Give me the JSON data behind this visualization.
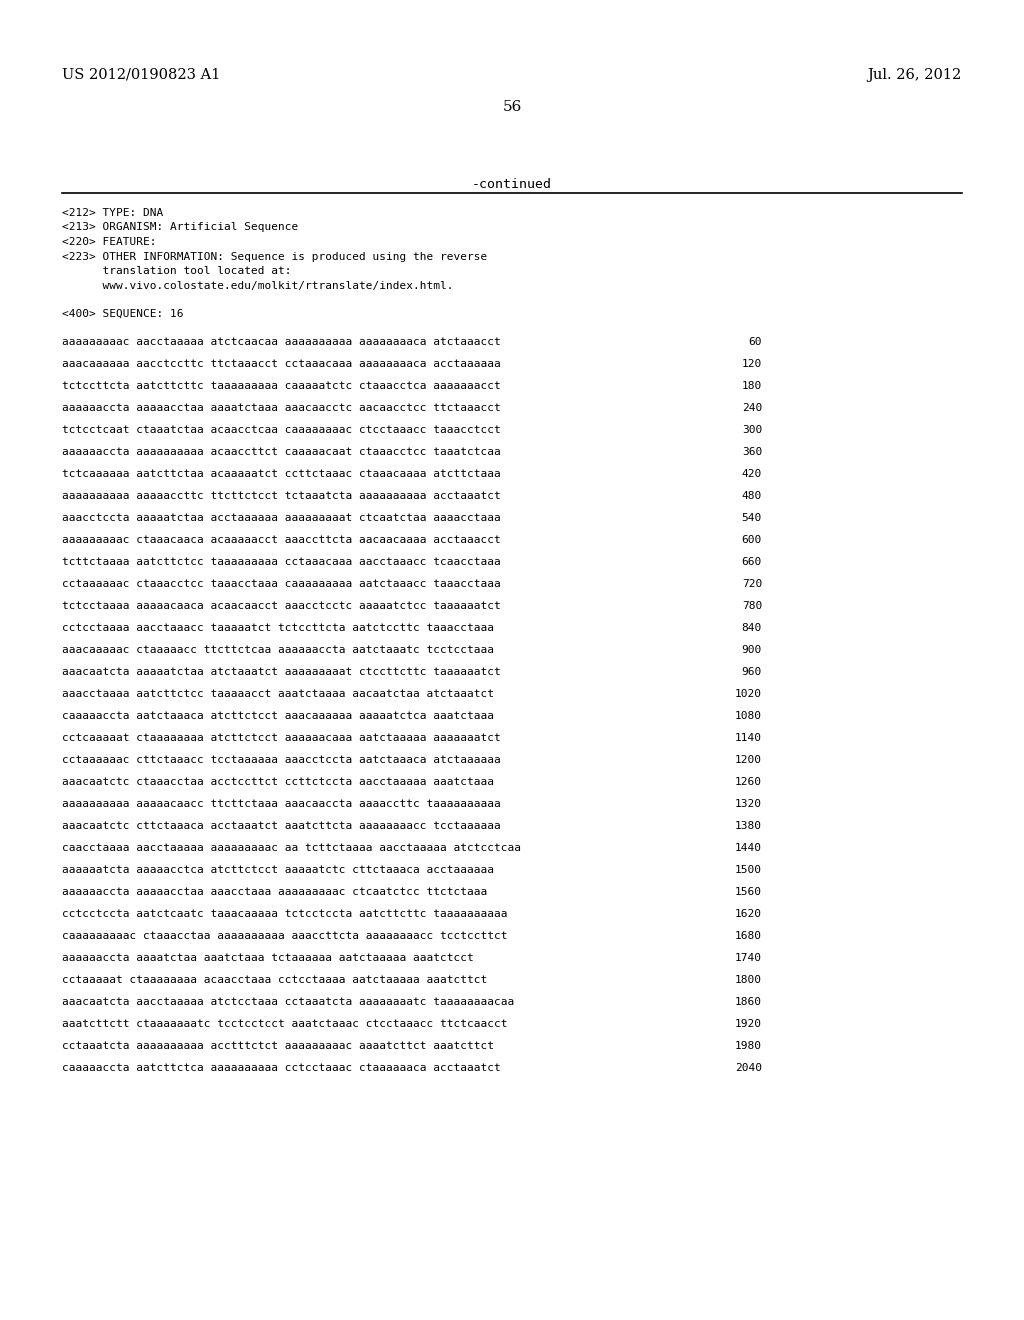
{
  "header_left": "US 2012/0190823 A1",
  "header_right": "Jul. 26, 2012",
  "page_number": "56",
  "continued_text": "-continued",
  "meta_lines": [
    "<212> TYPE: DNA",
    "<213> ORGANISM: Artificial Sequence",
    "<220> FEATURE:",
    "<223> OTHER INFORMATION: Sequence is produced using the reverse",
    "      translation tool located at:",
    "      www.vivo.colostate.edu/molkit/rtranslate/index.html."
  ],
  "sequence_header": "<400> SEQUENCE: 16",
  "sequence_lines": [
    [
      "aaaaaaaaac aacctaaaaa atctcaacaa aaaaaaaaaa aaaaaaaaca atctaaacct",
      "60"
    ],
    [
      "aaacaaaaaa aacctccttc ttctaaacct cctaaacaaa aaaaaaaaca acctaaaaaa",
      "120"
    ],
    [
      "tctccttcta aatcttcttc taaaaaaaaa caaaaatctc ctaaacctca aaaaaaacct",
      "180"
    ],
    [
      "aaaaaaccta aaaaacctaa aaaatctaaa aaacaacctc aacaacctcc ttctaaacct",
      "240"
    ],
    [
      "tctcctcaat ctaaatctaa acaacctcaa caaaaaaaac ctcctaaacc taaacctcct",
      "300"
    ],
    [
      "aaaaaaccta aaaaaaaaaa acaaccttct caaaaacaat ctaaacctcc taaatctcaa",
      "360"
    ],
    [
      "tctcaaaaaa aatcttctaa acaaaaatct ccttctaaac ctaaacaaaa atcttctaaa",
      "420"
    ],
    [
      "aaaaaaaaaa aaaaaccttc ttcttctcct tctaaatcta aaaaaaaaaa acctaaatct",
      "480"
    ],
    [
      "aaacctccta aaaaatctaa acctaaaaaa aaaaaaaaat ctcaatctaa aaaacctaaa",
      "540"
    ],
    [
      "aaaaaaaaac ctaaacaaca acaaaaacct aaaccttcta aacaacaaaa acctaaacct",
      "600"
    ],
    [
      "tcttctaaaa aatcttctcc taaaaaaaaa cctaaacaaa aacctaaacc tcaacctaaa",
      "660"
    ],
    [
      "cctaaaaaac ctaaacctcc taaacctaaa caaaaaaaaa aatctaaacc taaacctaaa",
      "720"
    ],
    [
      "tctcctaaaa aaaaacaaca acaacaacct aaacctcctc aaaaatctcc taaaaaatct",
      "780"
    ],
    [
      "cctcctaaaa aacctaaacc taaaaatct tctccttcta aatctccttc taaacctaaa",
      "840"
    ],
    [
      "aaacaaaaac ctaaaaacc ttcttctcaa aaaaaaccta aatctaaatc tcctcctaaa",
      "900"
    ],
    [
      "aaacaatcta aaaaatctaa atctaaatct aaaaaaaaat ctccttcttc taaaaaatct",
      "960"
    ],
    [
      "aaacctaaaa aatcttctcc taaaaacct aaatctaaaa aacaatctaa atctaaatct",
      "1020"
    ],
    [
      "caaaaaccta aatctaaaca atcttctcct aaacaaaaaa aaaaatctca aaatctaaa",
      "1080"
    ],
    [
      "cctcaaaaat ctaaaaaaaa atcttctcct aaaaaacaaa aatctaaaaa aaaaaaatct",
      "1140"
    ],
    [
      "cctaaaaaac cttctaaacc tcctaaaaaa aaacctccta aatctaaaca atctaaaaaa",
      "1200"
    ],
    [
      "aaacaatctc ctaaacctaa acctccttct ccttctccta aacctaaaaa aaatctaaa",
      "1260"
    ],
    [
      "aaaaaaaaaa aaaaacaacc ttcttctaaa aaacaaccta aaaaccttc taaaaaaaaaa",
      "1320"
    ],
    [
      "aaacaatctc cttctaaaca acctaaatct aaatcttcta aaaaaaaacc tcctaaaaaa",
      "1380"
    ],
    [
      "caacctaaaa aacctaaaaa aaaaaaaaac aa tcttctaaaa aacctaaaaa atctcctcaa",
      "1440"
    ],
    [
      "aaaaaatcta aaaaacctca atcttctcct aaaaatctc cttctaaaca acctaaaaaa",
      "1500"
    ],
    [
      "aaaaaaccta aaaaacctaa aaacctaaa aaaaaaaaac ctcaatctcc ttctctaaa",
      "1560"
    ],
    [
      "cctcctccta aatctcaatc taaacaaaaa tctcctccta aatcttcttc taaaaaaaaaa",
      "1620"
    ],
    [
      "caaaaaaaaac ctaaacctaa aaaaaaaaaa aaaccttcta aaaaaaaacc tcctccttct",
      "1680"
    ],
    [
      "aaaaaaccta aaaatctaa aaatctaaa tctaaaaaa aatctaaaaa aaatctcct",
      "1740"
    ],
    [
      "cctaaaaat ctaaaaaaaa acaacctaaa cctcctaaaa aatctaaaaa aaatcttct",
      "1800"
    ],
    [
      "aaacaatcta aacctaaaaa atctcctaaa cctaaatcta aaaaaaaatc taaaaaaaacaa",
      "1860"
    ],
    [
      "aaatcttctt ctaaaaaaatc tcctcctcct aaatctaaac ctcctaaacc ttctcaacct",
      "1920"
    ],
    [
      "cctaaatcta aaaaaaaaaa acctttctct aaaaaaaaac aaaatcttct aaatcttct",
      "1980"
    ],
    [
      "caaaaaccta aatcttctca aaaaaaaaaa cctcctaaac ctaaaaaaca acctaaatct",
      "2040"
    ]
  ],
  "background_color": "#ffffff",
  "text_color": "#000000"
}
